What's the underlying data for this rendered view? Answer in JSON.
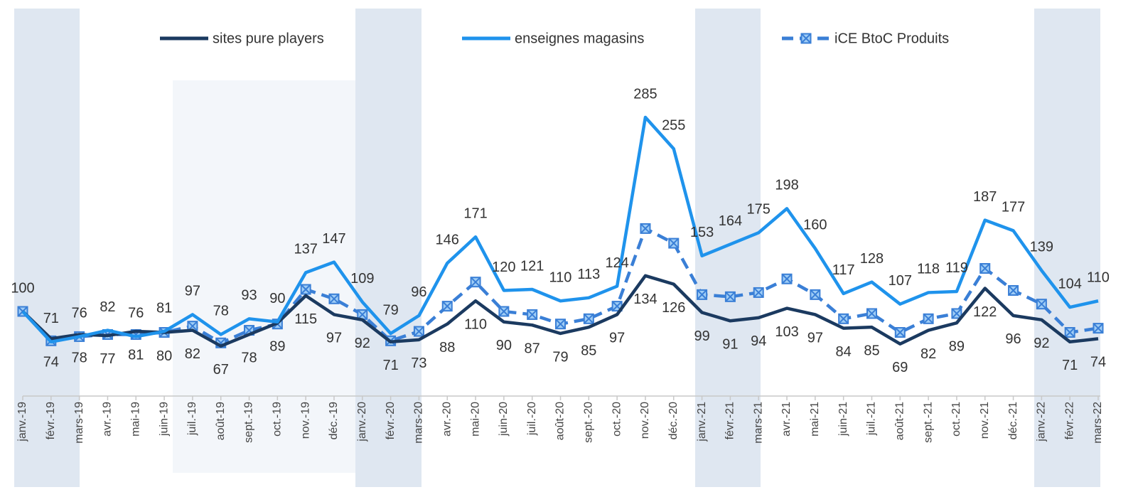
{
  "chart_data": {
    "type": "line",
    "categories": [
      "janv.-19",
      "févr.-19",
      "mars-19",
      "avr.-19",
      "mai-19",
      "juin-19",
      "juil.-19",
      "août-19",
      "sept.-19",
      "oct.-19",
      "nov.-19",
      "déc.-19",
      "janv.-20",
      "févr.-20",
      "mars-20",
      "avr.-20",
      "mai-20",
      "juin-20",
      "juil.-20",
      "août-20",
      "sept.-20",
      "oct.-20",
      "nov.-20",
      "déc.-20",
      "janv.-21",
      "févr.-21",
      "mars-21",
      "avr.-21",
      "mai-21",
      "juin-21",
      "juil.-21",
      "août-21",
      "sept.-21",
      "oct.-21",
      "nov.-21",
      "déc.-21",
      "janv.-22",
      "févr.-22",
      "mars-22"
    ],
    "ylim": [
      20,
      320
    ],
    "series": [
      {
        "name": "sites pure players",
        "color": "#1b3a60",
        "values": [
          100,
          74,
          78,
          77,
          81,
          80,
          82,
          67,
          78,
          89,
          115,
          97,
          92,
          71,
          73,
          88,
          110,
          90,
          87,
          79,
          85,
          97,
          134,
          126,
          99,
          91,
          94,
          103,
          97,
          84,
          85,
          69,
          82,
          89,
          122,
          96,
          92,
          71,
          74
        ],
        "value_labels": [
          null,
          "74",
          "78",
          "77",
          "81",
          "80",
          "82",
          "67",
          "78",
          "89",
          "115",
          "97",
          "92",
          "71",
          "73",
          "88",
          "110",
          "90",
          "87",
          "79",
          "85",
          "97",
          "134",
          "126",
          "99",
          "91",
          "94",
          "103",
          "97",
          "84",
          "85",
          "69",
          "82",
          "89",
          "122",
          "96",
          "92",
          "71",
          "74"
        ]
      },
      {
        "name": "enseignes magasins",
        "color": "#1f93ec",
        "values": [
          100,
          71,
          76,
          82,
          76,
          81,
          97,
          78,
          93,
          90,
          137,
          147,
          109,
          79,
          96,
          146,
          171,
          120,
          121,
          110,
          113,
          124,
          285,
          255,
          153,
          164,
          175,
          198,
          160,
          117,
          128,
          107,
          118,
          119,
          187,
          177,
          139,
          104,
          110
        ]
      },
      {
        "name": "iCE BtoC Produits",
        "color": "#3a7fd6",
        "values": [
          100,
          72,
          76,
          78,
          78,
          80,
          86,
          70,
          82,
          88,
          121,
          112,
          97,
          72,
          81,
          105,
          128,
          100,
          97,
          88,
          93,
          105,
          179,
          165,
          116,
          114,
          118,
          131,
          116,
          93,
          98,
          80,
          93,
          98,
          141,
          120,
          107,
          80,
          84
        ]
      }
    ]
  }
}
